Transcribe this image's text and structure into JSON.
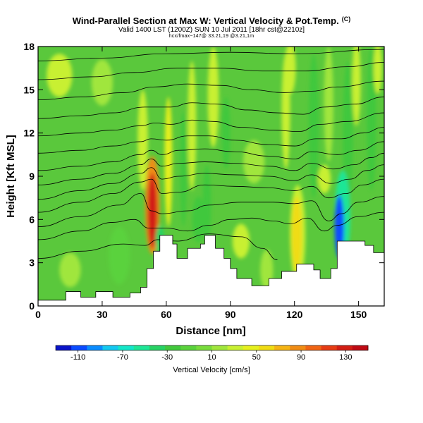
{
  "header": {
    "title": "Wind-Parallel Section at Max W: Vertical Velocity & Pot.Temp.",
    "copyright": "(C)",
    "valid_line": "Valid 1400 LST (1200Z) SUN 10 Jul 2011 [18hr cst@2210z]",
    "path_line": "hcx/fmax~147@ 33.21,19 @3.21,1m"
  },
  "chart_data": {
    "type": "heatmap",
    "xlabel": "Distance [nm]",
    "ylabel": "Height [Kft MSL]",
    "xlim": [
      0,
      162
    ],
    "ylim": [
      0,
      18
    ],
    "x_ticks": [
      0,
      30,
      60,
      90,
      120,
      150
    ],
    "y_ticks": [
      0,
      3,
      6,
      9,
      12,
      15,
      18
    ],
    "colorbar": {
      "title": "Vertical Velocity [cm/s]",
      "ticks": [
        -110,
        -70,
        -30,
        10,
        50,
        90,
        130
      ],
      "range": [
        -130,
        150
      ],
      "colors": [
        "#0a14c8",
        "#0a4bff",
        "#0a8cff",
        "#14c8f0",
        "#14e6c8",
        "#1ee696",
        "#28d264",
        "#41c83c",
        "#5ad23c",
        "#78dc3c",
        "#a0e63c",
        "#c8f032",
        "#e6f01e",
        "#f0dc14",
        "#f5b414",
        "#f08c14",
        "#f06414",
        "#e63c14",
        "#d21e14",
        "#be0a14"
      ]
    },
    "terrain": [
      [
        0,
        0.4
      ],
      [
        13,
        0.4
      ],
      [
        13,
        1.0
      ],
      [
        20,
        1.0
      ],
      [
        20,
        0.6
      ],
      [
        27,
        0.6
      ],
      [
        27,
        1.0
      ],
      [
        35,
        1.0
      ],
      [
        35,
        0.6
      ],
      [
        43,
        0.6
      ],
      [
        43,
        0.9
      ],
      [
        48,
        0.9
      ],
      [
        48,
        1.3
      ],
      [
        51,
        1.3
      ],
      [
        51,
        2.6
      ],
      [
        54,
        2.6
      ],
      [
        54,
        3.8
      ],
      [
        57,
        3.8
      ],
      [
        57,
        4.9
      ],
      [
        63,
        4.9
      ],
      [
        63,
        4.3
      ],
      [
        65,
        4.3
      ],
      [
        65,
        3.3
      ],
      [
        70,
        3.3
      ],
      [
        70,
        4.0
      ],
      [
        76,
        4.0
      ],
      [
        76,
        4.3
      ],
      [
        78,
        4.3
      ],
      [
        78,
        4.9
      ],
      [
        83,
        4.9
      ],
      [
        83,
        4.0
      ],
      [
        87,
        4.0
      ],
      [
        87,
        3.3
      ],
      [
        90,
        3.3
      ],
      [
        90,
        2.6
      ],
      [
        93,
        2.6
      ],
      [
        93,
        1.9
      ],
      [
        100,
        1.9
      ],
      [
        100,
        1.4
      ],
      [
        108,
        1.4
      ],
      [
        108,
        1.9
      ],
      [
        114,
        1.9
      ],
      [
        114,
        2.4
      ],
      [
        121,
        2.4
      ],
      [
        121,
        2.9
      ],
      [
        129,
        2.9
      ],
      [
        129,
        2.5
      ],
      [
        132,
        2.5
      ],
      [
        132,
        1.9
      ],
      [
        137,
        1.9
      ],
      [
        137,
        2.6
      ],
      [
        140,
        2.6
      ],
      [
        140,
        4.5
      ],
      [
        153,
        4.5
      ],
      [
        153,
        4.2
      ],
      [
        157,
        4.2
      ],
      [
        157,
        3.7
      ],
      [
        162,
        3.7
      ]
    ],
    "theta_contours": [
      {
        "label": "",
        "points": [
          [
            0,
            3.3
          ],
          [
            20,
            3.8
          ],
          [
            40,
            4.3
          ],
          [
            50,
            4.2
          ],
          [
            56,
            4.6
          ],
          [
            65,
            4.5
          ],
          [
            80,
            5.0
          ],
          [
            95,
            4.8
          ],
          [
            105,
            4.0
          ],
          [
            112,
            3.2
          ]
        ]
      },
      {
        "label": "",
        "points": [
          [
            0,
            4.6
          ],
          [
            20,
            5.2
          ],
          [
            35,
            5.8
          ],
          [
            45,
            6.0
          ],
          [
            52,
            5.4
          ],
          [
            60,
            5.4
          ],
          [
            70,
            5.2
          ],
          [
            80,
            5.6
          ],
          [
            90,
            6.0
          ],
          [
            100,
            6.1
          ],
          [
            110,
            5.9
          ],
          [
            118,
            5.7
          ],
          [
            126,
            6.1
          ],
          [
            134,
            5.2
          ],
          [
            140,
            5.6
          ],
          [
            150,
            6.2
          ],
          [
            162,
            6.5
          ]
        ]
      },
      {
        "label": "",
        "points": [
          [
            0,
            5.5
          ],
          [
            20,
            6.2
          ],
          [
            38,
            7.0
          ],
          [
            48,
            7.8
          ],
          [
            53,
            6.6
          ],
          [
            58,
            6.4
          ],
          [
            70,
            6.6
          ],
          [
            80,
            7.0
          ],
          [
            95,
            7.2
          ],
          [
            110,
            7.2
          ],
          [
            120,
            7.1
          ],
          [
            128,
            7.3
          ],
          [
            136,
            5.9
          ],
          [
            142,
            6.4
          ],
          [
            150,
            7.2
          ],
          [
            162,
            7.6
          ]
        ]
      },
      {
        "label": "",
        "points": [
          [
            0,
            6.5
          ],
          [
            20,
            7.2
          ],
          [
            35,
            7.8
          ],
          [
            48,
            8.6
          ],
          [
            53,
            8.8
          ],
          [
            58,
            7.8
          ],
          [
            66,
            7.9
          ],
          [
            78,
            8.4
          ],
          [
            92,
            8.3
          ],
          [
            108,
            8.2
          ],
          [
            120,
            8.0
          ],
          [
            128,
            8.3
          ],
          [
            136,
            7.5
          ],
          [
            144,
            7.8
          ],
          [
            152,
            8.4
          ],
          [
            162,
            8.8
          ]
        ]
      },
      {
        "label": "",
        "points": [
          [
            0,
            7.4
          ],
          [
            20,
            8.0
          ],
          [
            35,
            8.5
          ],
          [
            48,
            9.2
          ],
          [
            53,
            9.6
          ],
          [
            58,
            8.8
          ],
          [
            66,
            9.0
          ],
          [
            78,
            9.2
          ],
          [
            92,
            9.1
          ],
          [
            108,
            9.0
          ],
          [
            120,
            8.7
          ],
          [
            128,
            9.1
          ],
          [
            137,
            8.5
          ],
          [
            146,
            8.8
          ],
          [
            154,
            9.4
          ],
          [
            162,
            9.8
          ]
        ]
      },
      {
        "label": "",
        "points": [
          [
            0,
            8.4
          ],
          [
            20,
            8.8
          ],
          [
            35,
            9.2
          ],
          [
            48,
            9.8
          ],
          [
            53,
            10.2
          ],
          [
            58,
            9.7
          ],
          [
            66,
            9.9
          ],
          [
            78,
            10.0
          ],
          [
            92,
            9.9
          ],
          [
            108,
            9.7
          ],
          [
            120,
            9.4
          ],
          [
            128,
            9.9
          ],
          [
            138,
            9.5
          ],
          [
            148,
            9.8
          ],
          [
            156,
            10.3
          ],
          [
            162,
            10.6
          ]
        ]
      },
      {
        "label": "",
        "points": [
          [
            0,
            9.4
          ],
          [
            20,
            9.7
          ],
          [
            35,
            10.0
          ],
          [
            48,
            10.5
          ],
          [
            53,
            10.8
          ],
          [
            58,
            10.5
          ],
          [
            66,
            10.8
          ],
          [
            78,
            10.9
          ],
          [
            92,
            10.7
          ],
          [
            108,
            10.4
          ],
          [
            120,
            10.2
          ],
          [
            128,
            10.7
          ],
          [
            140,
            10.5
          ],
          [
            150,
            10.8
          ],
          [
            162,
            11.4
          ]
        ]
      },
      {
        "label": "",
        "points": [
          [
            0,
            10.6
          ],
          [
            20,
            10.8
          ],
          [
            35,
            11.1
          ],
          [
            48,
            11.4
          ],
          [
            53,
            11.6
          ],
          [
            60,
            11.5
          ],
          [
            70,
            11.8
          ],
          [
            80,
            11.8
          ],
          [
            92,
            11.5
          ],
          [
            108,
            11.2
          ],
          [
            120,
            11.1
          ],
          [
            130,
            11.6
          ],
          [
            142,
            11.6
          ],
          [
            152,
            12.0
          ],
          [
            162,
            12.4
          ]
        ]
      },
      {
        "label": "",
        "points": [
          [
            0,
            11.8
          ],
          [
            20,
            12.0
          ],
          [
            35,
            12.2
          ],
          [
            48,
            12.5
          ],
          [
            55,
            12.7
          ],
          [
            62,
            12.6
          ],
          [
            72,
            12.9
          ],
          [
            82,
            12.8
          ],
          [
            95,
            12.4
          ],
          [
            110,
            12.2
          ],
          [
            122,
            12.1
          ],
          [
            132,
            12.6
          ],
          [
            145,
            12.8
          ],
          [
            162,
            13.4
          ]
        ]
      },
      {
        "label": "",
        "points": [
          [
            0,
            13.0
          ],
          [
            20,
            13.2
          ],
          [
            35,
            13.4
          ],
          [
            50,
            13.8
          ],
          [
            62,
            13.8
          ],
          [
            72,
            14.1
          ],
          [
            84,
            14.0
          ],
          [
            98,
            13.6
          ],
          [
            112,
            13.4
          ],
          [
            124,
            13.3
          ],
          [
            134,
            13.8
          ],
          [
            148,
            14.0
          ],
          [
            162,
            14.5
          ]
        ]
      },
      {
        "label": "",
        "points": [
          [
            0,
            14.3
          ],
          [
            20,
            14.5
          ],
          [
            40,
            14.8
          ],
          [
            55,
            15.2
          ],
          [
            70,
            15.4
          ],
          [
            85,
            15.3
          ],
          [
            100,
            15.0
          ],
          [
            115,
            14.8
          ],
          [
            128,
            14.9
          ],
          [
            140,
            15.2
          ],
          [
            162,
            15.6
          ]
        ]
      },
      {
        "label": "",
        "points": [
          [
            0,
            15.7
          ],
          [
            25,
            15.9
          ],
          [
            45,
            16.2
          ],
          [
            65,
            16.5
          ],
          [
            85,
            16.5
          ],
          [
            105,
            16.3
          ],
          [
            125,
            16.3
          ],
          [
            145,
            16.6
          ],
          [
            162,
            16.9
          ]
        ]
      },
      {
        "label": "",
        "points": [
          [
            0,
            17.0
          ],
          [
            30,
            17.2
          ],
          [
            60,
            17.5
          ],
          [
            90,
            17.6
          ],
          [
            120,
            17.5
          ],
          [
            162,
            17.8
          ]
        ]
      }
    ],
    "w_features": [
      {
        "cx": 53.5,
        "cy": 6.6,
        "rx": 2.2,
        "ry": 2.6,
        "w": 135
      },
      {
        "cx": 53.5,
        "cy": 7.0,
        "rx": 3.4,
        "ry": 3.4,
        "w": 80
      },
      {
        "cx": 121,
        "cy": 5.0,
        "rx": 2.4,
        "ry": 2.6,
        "w": 55
      },
      {
        "cx": 121.5,
        "cy": 5.0,
        "rx": 3.6,
        "ry": 3.4,
        "w": 30
      },
      {
        "cx": 141,
        "cy": 5.5,
        "rx": 2.2,
        "ry": 2.2,
        "w": -110
      },
      {
        "cx": 142.5,
        "cy": 6.2,
        "rx": 3.6,
        "ry": 3.2,
        "w": -55
      },
      {
        "cx": 57,
        "cy": 4.6,
        "rx": 2.0,
        "ry": 1.0,
        "w": -40
      },
      {
        "cx": 75,
        "cy": 6.0,
        "rx": 2.8,
        "ry": 1.6,
        "w": -30
      },
      {
        "cx": 79,
        "cy": 7.0,
        "rx": 2.0,
        "ry": 2.8,
        "w": -25
      },
      {
        "cx": 49,
        "cy": 11.5,
        "rx": 2.4,
        "ry": 3.5,
        "w": 30
      },
      {
        "cx": 61,
        "cy": 10.0,
        "rx": 1.8,
        "ry": 4.5,
        "w": 40
      },
      {
        "cx": 68,
        "cy": 9.5,
        "rx": 1.6,
        "ry": 4.0,
        "w": -25
      },
      {
        "cx": 72,
        "cy": 12.5,
        "rx": 2.0,
        "ry": 4.5,
        "w": 35
      },
      {
        "cx": 82,
        "cy": 14.5,
        "rx": 2.6,
        "ry": 3.5,
        "w": 30
      },
      {
        "cx": 88,
        "cy": 12.0,
        "rx": 2.0,
        "ry": 2.5,
        "w": -20
      },
      {
        "cx": 116,
        "cy": 13.5,
        "rx": 2.0,
        "ry": 4.0,
        "w": 25
      },
      {
        "cx": 118,
        "cy": 16.5,
        "rx": 2.6,
        "ry": 1.8,
        "w": 30
      },
      {
        "cx": 129,
        "cy": 12.5,
        "rx": 2.4,
        "ry": 5.0,
        "w": -28
      },
      {
        "cx": 136,
        "cy": 14.0,
        "rx": 2.2,
        "ry": 4.0,
        "w": 22
      },
      {
        "cx": 145,
        "cy": 12.0,
        "rx": 2.4,
        "ry": 5.0,
        "w": -22
      },
      {
        "cx": 149,
        "cy": 15.5,
        "rx": 2.0,
        "ry": 3.0,
        "w": 25
      },
      {
        "cx": 156,
        "cy": 13.0,
        "rx": 2.2,
        "ry": 5.0,
        "w": -20
      },
      {
        "cx": 159,
        "cy": 16.5,
        "rx": 2.0,
        "ry": 1.8,
        "w": 28
      },
      {
        "cx": 10,
        "cy": 16.0,
        "rx": 6.0,
        "ry": 1.5,
        "w": 25
      },
      {
        "cx": 30,
        "cy": 15.5,
        "rx": 5.0,
        "ry": 1.6,
        "w": 22
      },
      {
        "cx": 38,
        "cy": 3.5,
        "rx": 5.0,
        "ry": 2.0,
        "w": -15
      },
      {
        "cx": 15,
        "cy": 2.5,
        "rx": 5.0,
        "ry": 1.2,
        "w": 22
      },
      {
        "cx": 95,
        "cy": 4.5,
        "rx": 4.0,
        "ry": 1.2,
        "w": 25
      },
      {
        "cx": 107,
        "cy": 2.5,
        "rx": 3.0,
        "ry": 1.4,
        "w": 22
      },
      {
        "cx": 101,
        "cy": 10.0,
        "rx": 5.0,
        "ry": 1.5,
        "w": 18
      },
      {
        "cx": 134,
        "cy": 8.8,
        "rx": 3.0,
        "ry": 1.0,
        "w": 30
      }
    ]
  }
}
